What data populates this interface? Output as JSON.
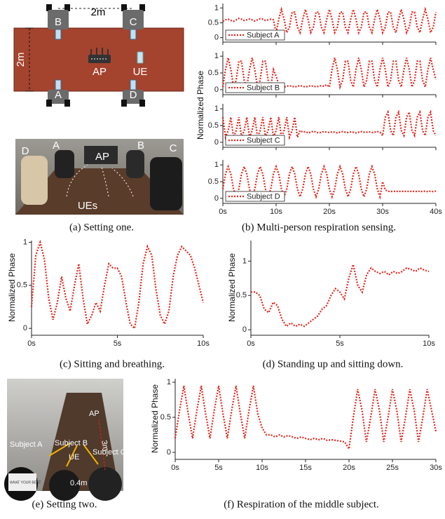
{
  "setting_one": {
    "caption": "(a)  Setting one.",
    "diagram": {
      "width_label": "2m",
      "length_label": "2m",
      "ap": "AP",
      "ue": "UE",
      "nodes": [
        "A",
        "B",
        "C",
        "D"
      ]
    },
    "photo": {
      "labels": [
        "D",
        "A",
        "AP",
        "B",
        "C",
        "UEs"
      ]
    }
  },
  "setting_two": {
    "caption": "(e)  Setting two.",
    "photo": {
      "labels": [
        "AP",
        "3m",
        "Subject A",
        "Subject B",
        "Subject C",
        "UE",
        "0.4m",
        "WHAT YOUR BEST"
      ]
    }
  },
  "chart_data": [
    {
      "type": "line",
      "subplots": true,
      "caption": "(b)  Multi-person respiration sensing.",
      "ylabel": "Normalized Phase",
      "x": [
        0,
        0.5,
        1,
        1.5,
        2,
        2.5,
        3,
        3.5,
        4,
        4.5,
        5,
        5.5,
        6,
        6.5,
        7,
        7.5,
        8,
        8.5,
        9,
        9.5,
        10,
        10.5,
        11,
        11.5,
        12,
        12.5,
        13,
        13.5,
        14,
        14.5,
        15,
        15.5,
        16,
        16.5,
        17,
        17.5,
        18,
        18.5,
        19,
        19.5,
        20,
        20.5,
        21,
        21.5,
        22,
        22.5,
        23,
        23.5,
        24,
        24.5,
        25,
        25.5,
        26,
        26.5,
        27,
        27.5,
        28,
        28.5,
        29,
        29.5,
        30,
        30.5,
        31,
        31.5,
        32,
        32.5,
        33,
        33.5,
        34,
        34.5,
        35,
        35.5,
        36,
        36.5,
        37,
        37.5,
        38,
        38.5,
        39,
        39.5,
        40
      ],
      "xlim": [
        0,
        40
      ],
      "xticks": [
        {
          "value": 0,
          "label": "0s"
        },
        {
          "value": 10,
          "label": "10s"
        },
        {
          "value": 20,
          "label": "20s"
        },
        {
          "value": 30,
          "label": "30s"
        },
        {
          "value": 40,
          "label": "40s"
        }
      ],
      "ylim": [
        -0.15,
        1.15
      ],
      "yticks": [
        0,
        0.5,
        1
      ],
      "legend": "lower left",
      "series": [
        {
          "name": "Subject A",
          "color": "#e3241b",
          "values": [
            0.55,
            0.6,
            0.62,
            0.58,
            0.55,
            0.6,
            0.65,
            0.62,
            0.58,
            0.6,
            0.63,
            0.6,
            0.56,
            0.6,
            0.64,
            0.62,
            0.58,
            0.6,
            0.62,
            0.6,
            0.17,
            0.62,
            0.95,
            0.62,
            0.17,
            0.35,
            0.86,
            0.86,
            0.35,
            0.17,
            0.62,
            0.95,
            0.62,
            0.17,
            0.35,
            0.86,
            0.86,
            0.35,
            0.17,
            0.62,
            0.95,
            0.62,
            0.17,
            0.35,
            0.86,
            0.86,
            0.35,
            0.17,
            0.62,
            0.95,
            0.62,
            0.17,
            0.35,
            0.86,
            0.86,
            0.35,
            0.17,
            0.62,
            0.95,
            0.62,
            0.17,
            0.35,
            0.86,
            0.86,
            0.35,
            0.17,
            0.62,
            0.95,
            0.62,
            0.17,
            0.35,
            0.86,
            0.86,
            0.35,
            0.17,
            0.62,
            0.95,
            0.62,
            0.17,
            0.35,
            0.86
          ]
        },
        {
          "name": "Subject B",
          "color": "#e3241b",
          "values": [
            0.08,
            0.6,
            0.95,
            0.6,
            0.08,
            0.28,
            0.85,
            0.85,
            0.28,
            0.08,
            0.6,
            0.95,
            0.6,
            0.08,
            0.28,
            0.85,
            0.85,
            0.28,
            0.08,
            0.6,
            0.4,
            0.15,
            0.1,
            0.08,
            0.1,
            0.12,
            0.1,
            0.08,
            0.1,
            0.12,
            0.1,
            0.08,
            0.1,
            0.12,
            0.1,
            0.09,
            0.1,
            0.12,
            0.1,
            0.15,
            0.08,
            0.6,
            0.95,
            0.6,
            0.08,
            0.28,
            0.85,
            0.85,
            0.28,
            0.08,
            0.6,
            0.95,
            0.6,
            0.08,
            0.28,
            0.85,
            0.85,
            0.28,
            0.08,
            0.6,
            0.95,
            0.6,
            0.08,
            0.28,
            0.85,
            0.85,
            0.28,
            0.08,
            0.6,
            0.95,
            0.6,
            0.08,
            0.28,
            0.85,
            0.85,
            0.28,
            0.08,
            0.6,
            0.95,
            0.6,
            0.3
          ]
        },
        {
          "name": "Subject C",
          "color": "#e3241b",
          "values": [
            0.75,
            0.15,
            0.35,
            0.75,
            0.15,
            0.35,
            0.75,
            0.15,
            0.35,
            0.75,
            0.15,
            0.35,
            0.75,
            0.15,
            0.35,
            0.75,
            0.15,
            0.35,
            0.75,
            0.15,
            0.35,
            0.75,
            0.15,
            0.35,
            0.75,
            0.15,
            0.35,
            0.75,
            0.15,
            0.35,
            0.3,
            0.32,
            0.28,
            0.3,
            0.33,
            0.3,
            0.28,
            0.3,
            0.32,
            0.3,
            0.29,
            0.31,
            0.3,
            0.28,
            0.3,
            0.32,
            0.3,
            0.29,
            0.31,
            0.3,
            0.28,
            0.3,
            0.32,
            0.3,
            0.3,
            0.31,
            0.29,
            0.3,
            0.32,
            0.3,
            0.2,
            0.75,
            0.9,
            0.35,
            0.2,
            0.75,
            0.9,
            0.35,
            0.2,
            0.75,
            0.9,
            0.35,
            0.2,
            0.75,
            0.9,
            0.35,
            0.2,
            0.75,
            0.9,
            0.35,
            0.2
          ]
        },
        {
          "name": "Subject D",
          "color": "#e3241b",
          "values": [
            0.28,
            0.73,
            0.95,
            0.73,
            0.28,
            0.05,
            0.28,
            0.73,
            0.95,
            0.73,
            0.28,
            0.05,
            0.28,
            0.73,
            0.95,
            0.73,
            0.28,
            0.05,
            0.28,
            0.73,
            0.95,
            0.73,
            0.28,
            0.05,
            0.28,
            0.73,
            0.95,
            0.73,
            0.28,
            0.05,
            0.28,
            0.73,
            0.95,
            0.73,
            0.28,
            0.05,
            0.28,
            0.73,
            0.95,
            0.73,
            0.28,
            0.05,
            0.28,
            0.73,
            0.95,
            0.73,
            0.28,
            0.05,
            0.28,
            0.73,
            0.95,
            0.73,
            0.28,
            0.05,
            0.28,
            0.73,
            0.95,
            0.73,
            0.28,
            0.05,
            0.5,
            0.25,
            0.22,
            0.2,
            0.22,
            0.2,
            0.22,
            0.2,
            0.22,
            0.2,
            0.22,
            0.2,
            0.22,
            0.2,
            0.22,
            0.2,
            0.22,
            0.2,
            0.22,
            0.2,
            0.22
          ]
        }
      ]
    },
    {
      "type": "line",
      "caption": "(c)  Sitting and breathing.",
      "ylabel": "Normalized Phase",
      "color": "#e3241b",
      "x": [
        0,
        0.25,
        0.5,
        0.75,
        1,
        1.25,
        1.5,
        1.75,
        2,
        2.25,
        2.5,
        2.75,
        3,
        3.25,
        3.5,
        3.75,
        4,
        4.25,
        4.5,
        4.75,
        5,
        5.25,
        5.5,
        5.75,
        6,
        6.25,
        6.5,
        6.75,
        7,
        7.25,
        7.5,
        7.75,
        8,
        8.25,
        8.5,
        8.75,
        9,
        9.25,
        9.5,
        9.75,
        10
      ],
      "values": [
        0.25,
        0.85,
        1.0,
        0.8,
        0.35,
        0.1,
        0.3,
        0.6,
        0.35,
        0.2,
        0.5,
        0.75,
        0.35,
        0.05,
        0.15,
        0.3,
        0.2,
        0.5,
        0.75,
        0.7,
        0.7,
        0.6,
        0.3,
        0.05,
        0.0,
        0.3,
        0.75,
        0.95,
        0.85,
        0.45,
        0.15,
        0.05,
        0.2,
        0.6,
        0.85,
        0.95,
        0.9,
        0.85,
        0.7,
        0.5,
        0.3
      ],
      "xlim": [
        0,
        10
      ],
      "xticks": [
        {
          "value": 0,
          "label": "0s"
        },
        {
          "value": 5,
          "label": "5s"
        },
        {
          "value": 10,
          "label": "10s"
        }
      ],
      "ylim": [
        -0.08,
        1.02
      ],
      "yticks": [
        0,
        0.5,
        1
      ]
    },
    {
      "type": "line",
      "caption": "(d)  Standing up and sitting down.",
      "ylabel": "Normalized Phase",
      "color": "#e3241b",
      "x": [
        0,
        0.25,
        0.5,
        0.75,
        1,
        1.25,
        1.5,
        1.75,
        2,
        2.25,
        2.5,
        2.75,
        3,
        3.25,
        3.5,
        3.75,
        4,
        4.25,
        4.5,
        4.75,
        5,
        5.25,
        5.5,
        5.75,
        6,
        6.25,
        6.5,
        6.75,
        7,
        7.25,
        7.5,
        7.75,
        8,
        8.25,
        8.5,
        8.75,
        9,
        9.25,
        9.5,
        9.75,
        10
      ],
      "values": [
        0.55,
        0.55,
        0.5,
        0.3,
        0.25,
        0.4,
        0.35,
        0.15,
        0.05,
        0.1,
        0.05,
        0.08,
        0.05,
        0.1,
        0.15,
        0.2,
        0.3,
        0.35,
        0.5,
        0.6,
        0.55,
        0.45,
        0.75,
        0.95,
        0.65,
        0.55,
        0.8,
        0.9,
        0.85,
        0.82,
        0.85,
        0.8,
        0.85,
        0.82,
        0.85,
        0.9,
        0.88,
        0.85,
        0.9,
        0.87,
        0.85
      ],
      "xlim": [
        0,
        10
      ],
      "xticks": [
        {
          "value": 0,
          "label": "0s"
        },
        {
          "value": 5,
          "label": "5s"
        },
        {
          "value": 10,
          "label": "10s"
        }
      ],
      "ylim": [
        -0.08,
        1.3
      ],
      "yticks": [
        0,
        0.5,
        1
      ]
    },
    {
      "type": "line",
      "caption": "(f)  Respiration of the middle subject.",
      "ylabel": "Normalized Phase",
      "color": "#e3241b",
      "x": [
        0,
        0.5,
        1,
        1.5,
        2,
        2.5,
        3,
        3.5,
        4,
        4.5,
        5,
        5.5,
        6,
        6.5,
        7,
        7.5,
        8,
        8.5,
        9,
        9.5,
        10,
        10.5,
        11,
        11.5,
        12,
        12.5,
        13,
        13.5,
        14,
        14.5,
        15,
        15.5,
        16,
        16.5,
        17,
        17.5,
        18,
        18.5,
        19,
        19.5,
        20,
        20.5,
        21,
        21.5,
        22,
        22.5,
        23,
        23.5,
        24,
        24.5,
        25,
        25.5,
        26,
        26.5,
        27,
        27.5,
        28,
        28.5,
        29,
        29.5,
        30
      ],
      "values": [
        0.2,
        0.6,
        0.95,
        0.55,
        0.2,
        0.6,
        0.95,
        0.55,
        0.2,
        0.6,
        0.95,
        0.55,
        0.2,
        0.6,
        0.95,
        0.55,
        0.2,
        0.6,
        0.95,
        0.55,
        0.35,
        0.25,
        0.25,
        0.22,
        0.25,
        0.22,
        0.24,
        0.22,
        0.2,
        0.22,
        0.2,
        0.18,
        0.2,
        0.18,
        0.2,
        0.17,
        0.18,
        0.17,
        0.16,
        0.15,
        0.05,
        0.5,
        0.9,
        0.6,
        0.15,
        0.5,
        0.9,
        0.6,
        0.15,
        0.5,
        0.9,
        0.6,
        0.15,
        0.5,
        0.9,
        0.6,
        0.15,
        0.5,
        0.9,
        0.6,
        0.3
      ],
      "xlim": [
        0,
        30
      ],
      "xticks": [
        {
          "value": 0,
          "label": "0s"
        },
        {
          "value": 5,
          "label": "5s"
        },
        {
          "value": 10,
          "label": "10s"
        },
        {
          "value": 15,
          "label": "15s"
        },
        {
          "value": 20,
          "label": "20s"
        },
        {
          "value": 25,
          "label": "25s"
        },
        {
          "value": 30,
          "label": "30s"
        }
      ],
      "ylim": [
        -0.1,
        1.05
      ],
      "yticks": [
        0,
        0.5,
        1
      ]
    }
  ]
}
